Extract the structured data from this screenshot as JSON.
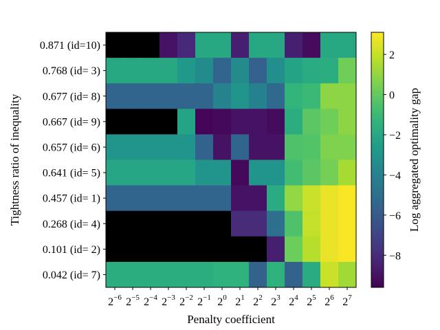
{
  "chart_data": {
    "type": "heatmap",
    "xlabel": "Penalty coefficient",
    "ylabel": "Tightness ratio of inequality",
    "colorbar_label": "Log aggregated optimality gap",
    "colormap": "viridis",
    "missing_color": "#000000",
    "x_exponents": [
      -6,
      -5,
      -4,
      -3,
      -2,
      -1,
      0,
      1,
      2,
      3,
      4,
      5,
      6,
      7
    ],
    "x_base": "2",
    "y_categories": [
      "0.871 (id=10)",
      "0.768 (id= 3)",
      "0.677 (id= 8)",
      "0.667 (id= 9)",
      "0.657 (id= 6)",
      "0.641 (id= 5)",
      "0.457 (id= 1)",
      "0.268 (id= 4)",
      "0.101 (id= 2)",
      "0.042 (id= 7)"
    ],
    "values": [
      [
        null,
        null,
        null,
        -9.0,
        -8.2,
        -2.0,
        -2.0,
        -8.5,
        -2.0,
        -2.0,
        -8.5,
        -9.2,
        -2.0,
        -2.0
      ],
      [
        -2.0,
        -2.0,
        -2.0,
        -2.0,
        -2.8,
        -3.5,
        -5.5,
        -3.5,
        -5.7,
        -3.3,
        -2.2,
        -1.8,
        -1.7,
        0.3
      ],
      [
        -5.5,
        -5.5,
        -5.5,
        -5.5,
        -5.5,
        -5.5,
        -3.9,
        -3.0,
        -4.0,
        -5.3,
        -1.3,
        -1.0,
        0.9,
        0.9
      ],
      [
        null,
        null,
        null,
        null,
        -2.2,
        -9.5,
        -9.3,
        -9.0,
        -9.0,
        -9.2,
        -1.7,
        -0.2,
        0.3,
        0.9
      ],
      [
        -3.0,
        -3.0,
        -3.0,
        -3.0,
        -3.0,
        -5.6,
        -9.0,
        -5.5,
        -9.0,
        -9.0,
        -0.5,
        -0.4,
        0.6,
        0.6
      ],
      [
        -2.1,
        -2.1,
        -2.1,
        -2.1,
        -2.1,
        -3.0,
        -3.0,
        -9.3,
        -3.0,
        -3.0,
        -0.8,
        -0.2,
        0.4,
        1.4
      ],
      [
        -5.5,
        -5.5,
        -5.5,
        -5.5,
        -5.5,
        -5.5,
        -5.5,
        -9.0,
        -9.0,
        -1.8,
        1.0,
        2.1,
        2.7,
        3.0
      ],
      [
        null,
        null,
        null,
        null,
        null,
        null,
        null,
        -8.0,
        -8.0,
        -5.0,
        -0.5,
        2.0,
        2.7,
        3.0
      ],
      [
        null,
        null,
        null,
        null,
        null,
        null,
        null,
        null,
        null,
        -8.5,
        0.2,
        1.7,
        2.7,
        3.0
      ],
      [
        -1.7,
        -1.7,
        -1.7,
        -1.7,
        -1.7,
        -1.7,
        -1.5,
        -1.5,
        -5.6,
        -1.5,
        -5.6,
        -1.8,
        2.1,
        1.3
      ]
    ],
    "zlim": [
      -9.6,
      3.1
    ],
    "colorbar_ticks": [
      2,
      0,
      -2,
      -4,
      -6,
      -8
    ],
    "colorbar_tick_labels": [
      "2",
      "0",
      "−2",
      "−4",
      "−6",
      "−8"
    ],
    "grid": false
  }
}
